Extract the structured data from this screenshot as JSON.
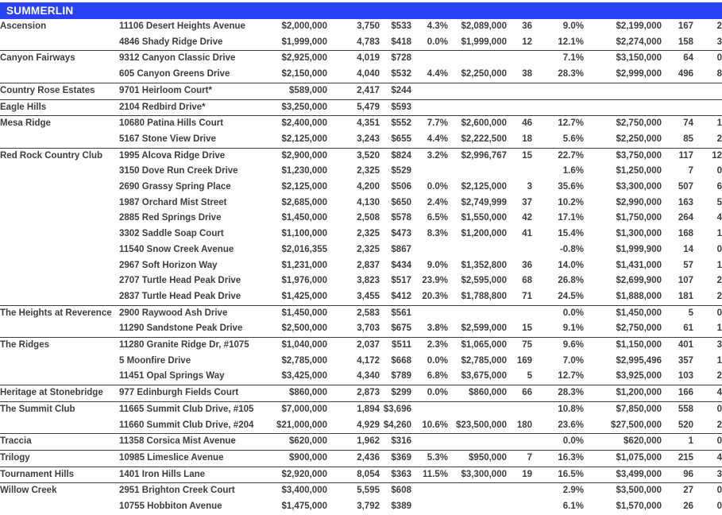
{
  "header": {
    "title": "SUMMERLIN",
    "bg_color": "#2b41f5",
    "text_color": "#ffffff"
  },
  "table": {
    "column_keys": [
      "neighborhood",
      "address",
      "list-price",
      "sqft",
      "price-per-sqft",
      "pct-1",
      "price-2",
      "count-1",
      "pct-2",
      "price-3",
      "count-2",
      "count-3"
    ],
    "rows": [
      {
        "group": "Ascension",
        "address": "11106 Desert Heights Avenue",
        "values": [
          "$2,000,000",
          "3,750",
          "$533",
          "4.3%",
          "$2,089,000",
          "36",
          "9.0%",
          "$2,199,000",
          "167",
          "2"
        ]
      },
      {
        "group": "",
        "address": "4846 Shady Ridge Drive",
        "values": [
          "$1,999,000",
          "4,783",
          "$418",
          "0.0%",
          "$1,999,000",
          "12",
          "12.1%",
          "$2,274,000",
          "158",
          "3"
        ]
      },
      {
        "group": "Canyon Fairways",
        "address": "9312 Canyon Classic Drive",
        "values": [
          "$2,925,000",
          "4,019",
          "$728",
          "",
          "",
          "",
          "7.1%",
          "$3,150,000",
          "64",
          "0"
        ]
      },
      {
        "group": "",
        "address": "605 Canyon Greens Drive",
        "values": [
          "$2,150,000",
          "4,040",
          "$532",
          "4.4%",
          "$2,250,000",
          "38",
          "28.3%",
          "$2,999,000",
          "496",
          "8"
        ]
      },
      {
        "group": "Country Rose Estates",
        "address": "9701 Heirloom Court*",
        "values": [
          "$589,000",
          "2,417",
          "$244",
          "",
          "",
          "",
          "",
          "",
          "",
          ""
        ]
      },
      {
        "group": "Eagle Hills",
        "address": "2104 Redbird Drive*",
        "values": [
          "$3,250,000",
          "5,479",
          "$593",
          "",
          "",
          "",
          "",
          "",
          "",
          ""
        ]
      },
      {
        "group": "Mesa Ridge",
        "address": "10680 Patina Hills Court",
        "values": [
          "$2,400,000",
          "4,351",
          "$552",
          "7.7%",
          "$2,600,000",
          "46",
          "12.7%",
          "$2,750,000",
          "74",
          "1"
        ]
      },
      {
        "group": "",
        "address": "5167 Stone View Drive",
        "values": [
          "$2,125,000",
          "3,243",
          "$655",
          "4.4%",
          "$2,222,500",
          "18",
          "5.6%",
          "$2,250,000",
          "85",
          "2"
        ]
      },
      {
        "group": "Red Rock Country Club",
        "address": "1995 Alcova Ridge Drive",
        "values": [
          "$2,900,000",
          "3,520",
          "$824",
          "3.2%",
          "$2,996,767",
          "15",
          "22.7%",
          "$3,750,000",
          "117",
          "12"
        ]
      },
      {
        "group": "",
        "address": "3150 Dove Run Creek Drive",
        "values": [
          "$1,230,000",
          "2,325",
          "$529",
          "",
          "",
          "",
          "1.6%",
          "$1,250,000",
          "7",
          "0"
        ]
      },
      {
        "group": "",
        "address": "2690 Grassy Spring Place",
        "values": [
          "$2,125,000",
          "4,200",
          "$506",
          "0.0%",
          "$2,125,000",
          "3",
          "35.6%",
          "$3,300,000",
          "507",
          "6"
        ]
      },
      {
        "group": "",
        "address": "1987 Orchard Mist Street",
        "values": [
          "$2,685,000",
          "4,130",
          "$650",
          "2.4%",
          "$2,749,999",
          "37",
          "10.2%",
          "$2,990,000",
          "163",
          "5"
        ]
      },
      {
        "group": "",
        "address": "2885 Red Springs Drive",
        "values": [
          "$1,450,000",
          "2,508",
          "$578",
          "6.5%",
          "$1,550,000",
          "42",
          "17.1%",
          "$1,750,000",
          "264",
          "4"
        ]
      },
      {
        "group": "",
        "address": "3302 Saddle Soap Court",
        "values": [
          "$1,100,000",
          "2,325",
          "$473",
          "8.3%",
          "$1,200,000",
          "41",
          "15.4%",
          "$1,300,000",
          "168",
          "1"
        ]
      },
      {
        "group": "",
        "address": "11540 Snow Creek Avenue",
        "values": [
          "$2,016,355",
          "2,325",
          "$867",
          "",
          "",
          "",
          "-0.8%",
          "$1,999,900",
          "14",
          "0"
        ]
      },
      {
        "group": "",
        "address": "2967 Soft Horizon Way",
        "values": [
          "$1,231,000",
          "2,837",
          "$434",
          "9.0%",
          "$1,352,800",
          "36",
          "14.0%",
          "$1,431,000",
          "57",
          "1"
        ]
      },
      {
        "group": "",
        "address": "2707 Turtle Head Peak Drive",
        "values": [
          "$1,976,000",
          "3,823",
          "$517",
          "23.9%",
          "$2,595,000",
          "68",
          "26.8%",
          "$2,699,900",
          "107",
          "2"
        ]
      },
      {
        "group": "",
        "address": "2837 Turtle Head Peak Drive",
        "values": [
          "$1,425,000",
          "3,455",
          "$412",
          "20.3%",
          "$1,788,800",
          "71",
          "24.5%",
          "$1,888,000",
          "181",
          "2"
        ]
      },
      {
        "group": "The Heights at Reverence",
        "address": "2900 Raywood Ash Drive",
        "values": [
          "$1,450,000",
          "2,583",
          "$561",
          "",
          "",
          "",
          "0.0%",
          "$1,450,000",
          "5",
          "0"
        ]
      },
      {
        "group": "",
        "address": "11290 Sandstone Peak Drive",
        "values": [
          "$2,500,000",
          "3,703",
          "$675",
          "3.8%",
          "$2,599,000",
          "15",
          "9.1%",
          "$2,750,000",
          "61",
          "1"
        ]
      },
      {
        "group": "The Ridges",
        "address": "11280 Granite Ridge Dr, #1075",
        "values": [
          "$1,040,000",
          "2,037",
          "$511",
          "2.3%",
          "$1,065,000",
          "75",
          "9.6%",
          "$1,150,000",
          "401",
          "3"
        ]
      },
      {
        "group": "",
        "address": "5 Moonfire Drive",
        "values": [
          "$2,785,000",
          "4,172",
          "$668",
          "0.0%",
          "$2,785,000",
          "169",
          "7.0%",
          "$2,995,496",
          "357",
          "1"
        ]
      },
      {
        "group": "",
        "address": "11451 Opal Springs Way",
        "values": [
          "$3,425,000",
          "4,340",
          "$789",
          "6.8%",
          "$3,675,000",
          "5",
          "12.7%",
          "$3,925,000",
          "103",
          "2"
        ]
      },
      {
        "group": "Heritage at Stonebridge",
        "address": "977 Edinburgh Fields Court",
        "values": [
          "$860,000",
          "2,873",
          "$299",
          "0.0%",
          "$860,000",
          "66",
          "28.3%",
          "$1,200,000",
          "166",
          "4"
        ]
      },
      {
        "group": "The Summit Club",
        "address": "11665 Summit Club Drive, #105",
        "values": [
          "$7,000,000",
          "1,894",
          "$3,696",
          "",
          "",
          "",
          "10.8%",
          "$7,850,000",
          "558",
          "0"
        ]
      },
      {
        "group": "",
        "address": "11660 Summit Club Drive, #204",
        "values": [
          "$21,000,000",
          "4,929",
          "$4,260",
          "10.6%",
          "$23,500,000",
          "180",
          "23.6%",
          "$27,500,000",
          "520",
          "2"
        ]
      },
      {
        "group": "Traccia",
        "address": "11358 Corsica Mist Avenue",
        "values": [
          "$620,000",
          "1,962",
          "$316",
          "",
          "",
          "",
          "0.0%",
          "$620,000",
          "1",
          "0"
        ]
      },
      {
        "group": "Trilogy",
        "address": "10985 Limeslice Avenue",
        "values": [
          "$900,000",
          "2,436",
          "$369",
          "5.3%",
          "$950,000",
          "7",
          "16.3%",
          "$1,075,000",
          "215",
          "4"
        ]
      },
      {
        "group": "Tournament Hills",
        "address": "1401 Iron Hills Lane",
        "values": [
          "$2,920,000",
          "8,054",
          "$363",
          "11.5%",
          "$3,300,000",
          "19",
          "16.5%",
          "$3,499,000",
          "96",
          "3"
        ]
      },
      {
        "group": "Willow Creek",
        "address": "2951 Brighton Creek Court",
        "values": [
          "$3,400,000",
          "5,595",
          "$608",
          "",
          "",
          "",
          "2.9%",
          "$3,500,000",
          "27",
          "0"
        ]
      },
      {
        "group": "",
        "address": "10755 Hobbiton Avenue",
        "values": [
          "$1,475,000",
          "3,792",
          "$389",
          "",
          "",
          "",
          "6.1%",
          "$1,570,000",
          "26",
          "0"
        ]
      }
    ]
  }
}
